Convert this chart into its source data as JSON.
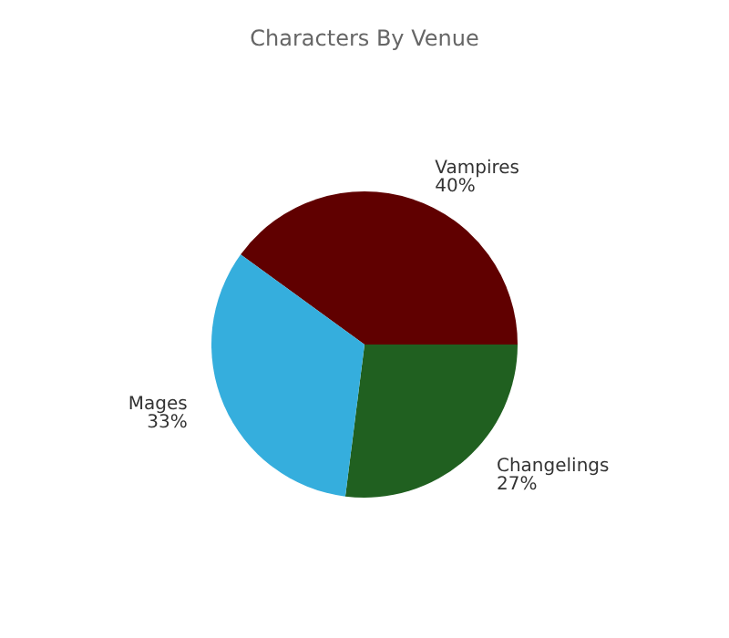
{
  "chart_data": {
    "type": "pie",
    "title": "Characters By Venue",
    "categories": [
      "Vampires",
      "Changelings",
      "Mages"
    ],
    "values": [
      40,
      27,
      33
    ],
    "colors": [
      "#600000",
      "#206020",
      "#35aedd"
    ],
    "value_labels": [
      "40%",
      "27%",
      "33%"
    ],
    "legend": false
  }
}
